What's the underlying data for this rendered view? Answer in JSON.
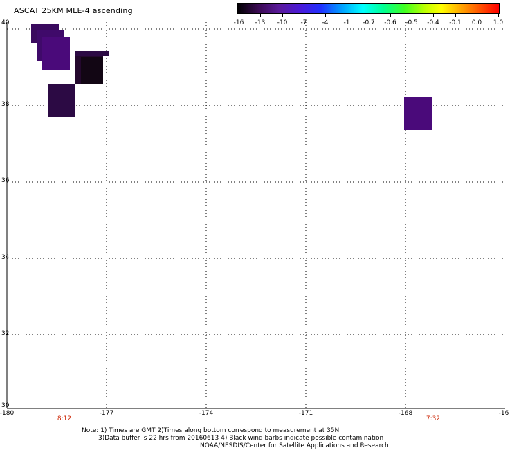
{
  "title": "ASCAT 25KM MLE-4 ascending",
  "colorbar": {
    "labels": [
      "-16",
      "-13",
      "-10",
      "-7",
      "-4",
      "-1",
      "-0.7",
      "-0.6",
      "-0.5",
      "-0.4",
      "-0.1",
      "0.0",
      "1.0"
    ]
  },
  "map": {
    "lat_labels": [
      "40",
      "38",
      "36",
      "34",
      "32",
      "30"
    ],
    "lon_labels": [
      "-180",
      "-177",
      "-174",
      "-171",
      "-168",
      "-16"
    ],
    "time_labels": [
      "8:12",
      "7:32"
    ],
    "cells_color_note": "dark purple / near-black MLE cells",
    "colors": {
      "purple": "#4a0a7a",
      "dark_purple": "#2c0a44",
      "black_purple": "#120614",
      "grid": "#000000"
    }
  },
  "notes": {
    "line1": "Note: 1) Times are GMT 2)Times along bottom correspond to measurement at 35N",
    "line2": "3)Data buffer is 22 hrs from 20160613 4) Black wind barbs indicate possible contamination",
    "line3": "NOAA/NESDIS/Center for Satellite Applications and Research"
  }
}
